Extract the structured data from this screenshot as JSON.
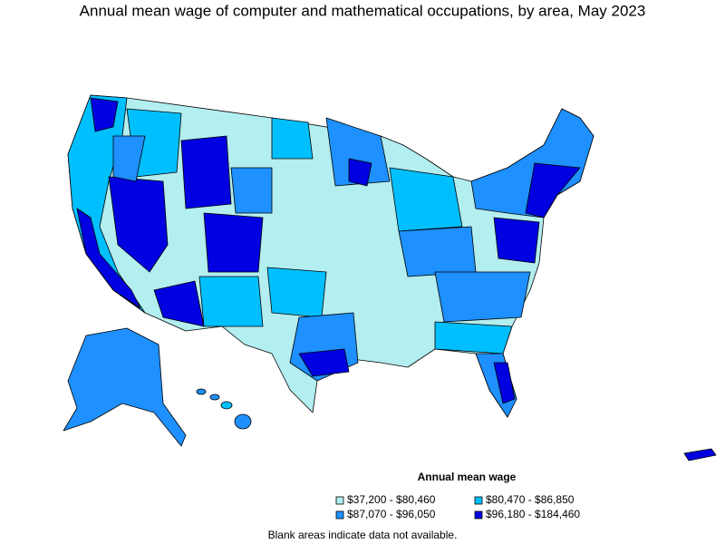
{
  "title": "Annual mean wage of computer and mathematical occupations, by area, May 2023",
  "legend": {
    "title": "Annual mean wage",
    "items": [
      {
        "label": "$37,200 - $80,460",
        "color": "#b3eef0"
      },
      {
        "label": "$80,470 - $86,850",
        "color": "#00bfff"
      },
      {
        "label": "$87,070 - $96,050",
        "color": "#1e90ff"
      },
      {
        "label": "$96,180 - $184,460",
        "color": "#0000e0"
      }
    ]
  },
  "note": "Blank areas indicate data not available."
}
